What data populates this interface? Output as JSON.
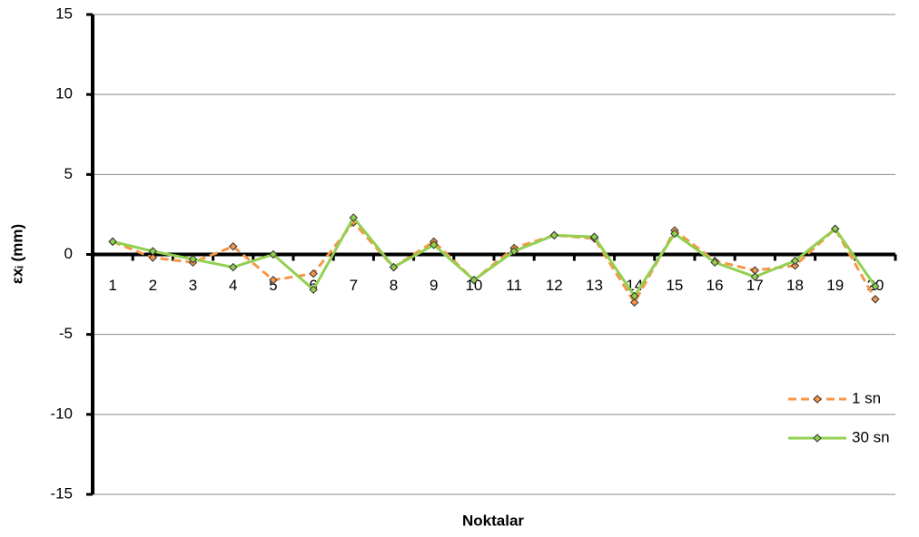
{
  "chart_data": {
    "type": "line",
    "xlabel": "Noktalar",
    "ylabel": "εxᵢ (mm)",
    "categories": [
      "1",
      "2",
      "3",
      "4",
      "5",
      "6",
      "7",
      "8",
      "9",
      "10",
      "11",
      "12",
      "13",
      "14",
      "15",
      "16",
      "17",
      "18",
      "19",
      "20"
    ],
    "series": [
      {
        "name": "1 sn",
        "color": "#f79646",
        "dash": true,
        "values": [
          0.8,
          -0.2,
          -0.5,
          0.5,
          -1.6,
          -1.2,
          2.0,
          -0.8,
          0.8,
          -1.6,
          0.4,
          1.2,
          1.0,
          -3.0,
          1.5,
          -0.4,
          -1.0,
          -0.7,
          1.6,
          -2.8
        ]
      },
      {
        "name": "30 sn",
        "color": "#92d050",
        "dash": false,
        "values": [
          0.8,
          0.2,
          -0.3,
          -0.8,
          0.0,
          -2.2,
          2.3,
          -0.8,
          0.6,
          -1.6,
          0.2,
          1.2,
          1.1,
          -2.6,
          1.3,
          -0.5,
          -1.4,
          -0.4,
          1.6,
          -2.0
        ]
      }
    ],
    "ylim": [
      -15,
      15
    ],
    "yticks": [
      -15,
      -10,
      -5,
      0,
      5,
      10,
      15
    ],
    "grid": true,
    "legend": "lower right"
  }
}
